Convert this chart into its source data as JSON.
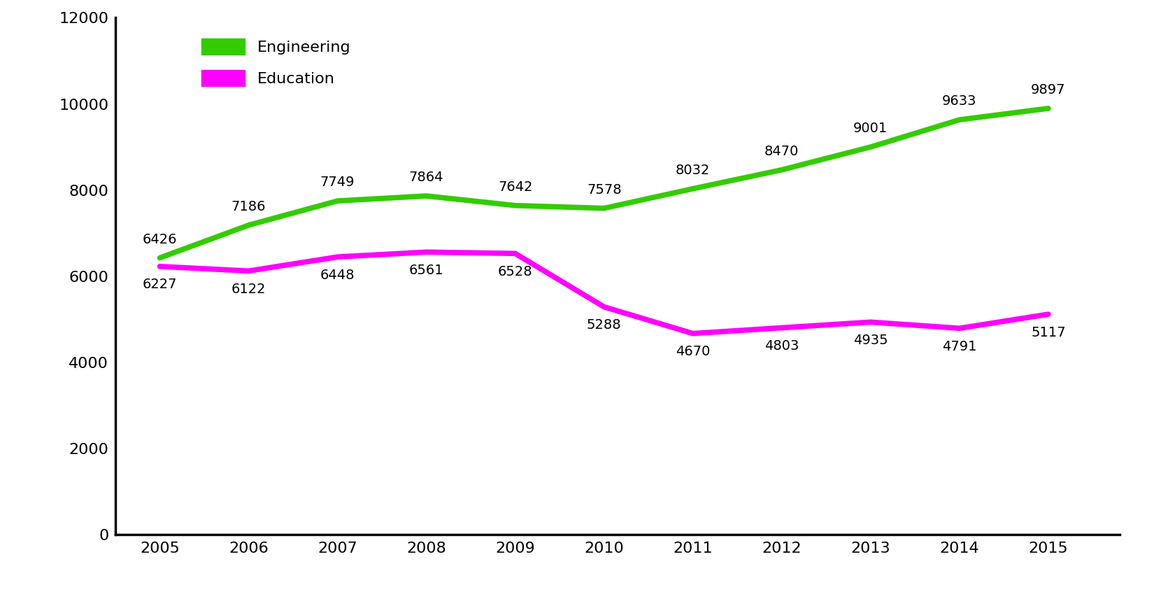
{
  "years": [
    2005,
    2006,
    2007,
    2008,
    2009,
    2010,
    2011,
    2012,
    2013,
    2014,
    2015
  ],
  "engineering": [
    6426,
    7186,
    7749,
    7864,
    7642,
    7578,
    8032,
    8470,
    9001,
    9633,
    9897
  ],
  "education": [
    6227,
    6122,
    6448,
    6561,
    6528,
    5288,
    4670,
    4803,
    4935,
    4791,
    5117
  ],
  "engineering_color": "#33cc00",
  "education_color": "#ff00ff",
  "line_width": 5.5,
  "background_color": "#ffffff",
  "ylim": [
    0,
    12000
  ],
  "yticks": [
    0,
    2000,
    4000,
    6000,
    8000,
    10000,
    12000
  ],
  "legend_engineering": "Engineering",
  "legend_education": "Education",
  "tick_fontsize": 16,
  "legend_fontsize": 16,
  "annotation_fontsize": 14,
  "spine_linewidth": 2.5
}
